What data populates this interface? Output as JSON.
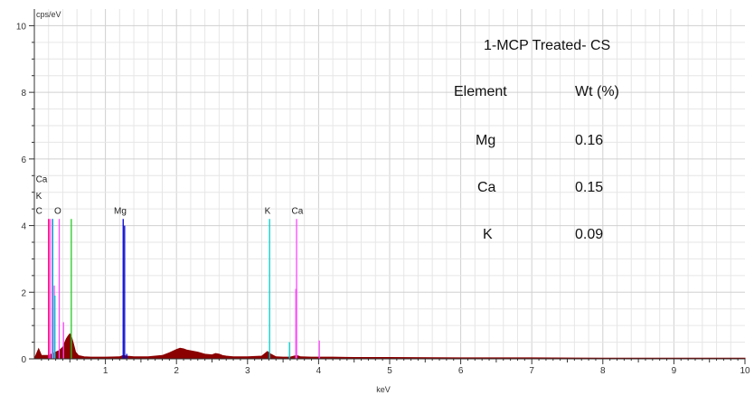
{
  "chart_data": {
    "type": "line",
    "title": "",
    "xlabel": "keV",
    "ylabel": "cps/eV",
    "xlim": [
      0,
      10
    ],
    "ylim": [
      0,
      10.5
    ],
    "x_ticks": [
      1,
      2,
      3,
      4,
      5,
      6,
      7,
      8,
      9,
      10
    ],
    "y_ticks": [
      0,
      2,
      4,
      6,
      8,
      10
    ],
    "grid": true,
    "spectrum": {
      "color": "#8b0000",
      "x": [
        0.0,
        0.03,
        0.06,
        0.08,
        0.1,
        0.15,
        0.2,
        0.25,
        0.3,
        0.35,
        0.4,
        0.45,
        0.48,
        0.5,
        0.52,
        0.55,
        0.58,
        0.62,
        0.7,
        0.8,
        1.0,
        1.2,
        1.25,
        1.3,
        1.4,
        1.6,
        1.8,
        1.9,
        2.0,
        2.05,
        2.1,
        2.15,
        2.2,
        2.3,
        2.4,
        2.5,
        2.55,
        2.6,
        2.65,
        2.7,
        2.8,
        3.0,
        3.2,
        3.28,
        3.32,
        3.4,
        3.5,
        3.6,
        3.69,
        3.75,
        3.9,
        4.0,
        4.2,
        4.5,
        5.0,
        6.0,
        7.0,
        8.0,
        9.0,
        10.0
      ],
      "y": [
        0.0,
        0.15,
        0.3,
        0.2,
        0.1,
        0.1,
        0.1,
        0.15,
        0.2,
        0.25,
        0.35,
        0.6,
        0.7,
        0.75,
        0.68,
        0.45,
        0.2,
        0.1,
        0.06,
        0.05,
        0.05,
        0.06,
        0.1,
        0.08,
        0.06,
        0.06,
        0.1,
        0.18,
        0.28,
        0.32,
        0.3,
        0.26,
        0.24,
        0.2,
        0.14,
        0.12,
        0.16,
        0.14,
        0.1,
        0.08,
        0.06,
        0.06,
        0.08,
        0.22,
        0.15,
        0.06,
        0.05,
        0.05,
        0.1,
        0.06,
        0.05,
        0.05,
        0.05,
        0.04,
        0.04,
        0.03,
        0.03,
        0.02,
        0.02,
        0.02
      ]
    },
    "markers": [
      {
        "x": 0.22,
        "y": 4.2,
        "color": "#ff44ff"
      },
      {
        "x": 0.25,
        "y": 4.2,
        "color": "#ff44ff"
      },
      {
        "x": 0.28,
        "y": 2.2,
        "color": "#ff44ff"
      },
      {
        "x": 0.2,
        "y": 4.2,
        "color": "#ff0066"
      },
      {
        "x": 0.26,
        "y": 4.2,
        "color": "#00cccc"
      },
      {
        "x": 0.29,
        "y": 1.9,
        "color": "#00cccc"
      },
      {
        "x": 0.35,
        "y": 4.2,
        "color": "#ff44ff"
      },
      {
        "x": 0.41,
        "y": 1.1,
        "color": "#ff44ff"
      },
      {
        "x": 0.52,
        "y": 4.2,
        "color": "#22cc22"
      },
      {
        "x": 1.25,
        "y": 4.2,
        "color": "#0000cc"
      },
      {
        "x": 1.27,
        "y": 4.0,
        "color": "#0000cc"
      },
      {
        "x": 1.3,
        "y": 0.15,
        "color": "#0000cc"
      },
      {
        "x": 3.31,
        "y": 4.2,
        "color": "#00cccc"
      },
      {
        "x": 3.59,
        "y": 0.5,
        "color": "#00cccc"
      },
      {
        "x": 3.69,
        "y": 4.2,
        "color": "#ff44ff"
      },
      {
        "x": 3.68,
        "y": 2.1,
        "color": "#ff44ff"
      },
      {
        "x": 4.01,
        "y": 0.55,
        "color": "#ff44ff"
      }
    ],
    "peak_labels": [
      {
        "text": "Ca",
        "x": 0.02,
        "y": 5.3
      },
      {
        "text": "K",
        "x": 0.02,
        "y": 4.8
      },
      {
        "text": "C",
        "x": 0.02,
        "y": 4.35
      },
      {
        "text": "O",
        "x": 0.28,
        "y": 4.35
      },
      {
        "text": "Mg",
        "x": 1.12,
        "y": 4.35
      },
      {
        "text": "K",
        "x": 3.24,
        "y": 4.35
      },
      {
        "text": "Ca",
        "x": 3.62,
        "y": 4.35
      }
    ]
  },
  "annotation": {
    "sample_title": "1-MCP Treated- CS",
    "header_element": "Element",
    "header_wt": "Wt (%)",
    "rows": [
      {
        "element": "Mg",
        "wt": "0.16"
      },
      {
        "element": "Ca",
        "wt": "0.15"
      },
      {
        "element": "K",
        "wt": "0.09"
      }
    ]
  }
}
